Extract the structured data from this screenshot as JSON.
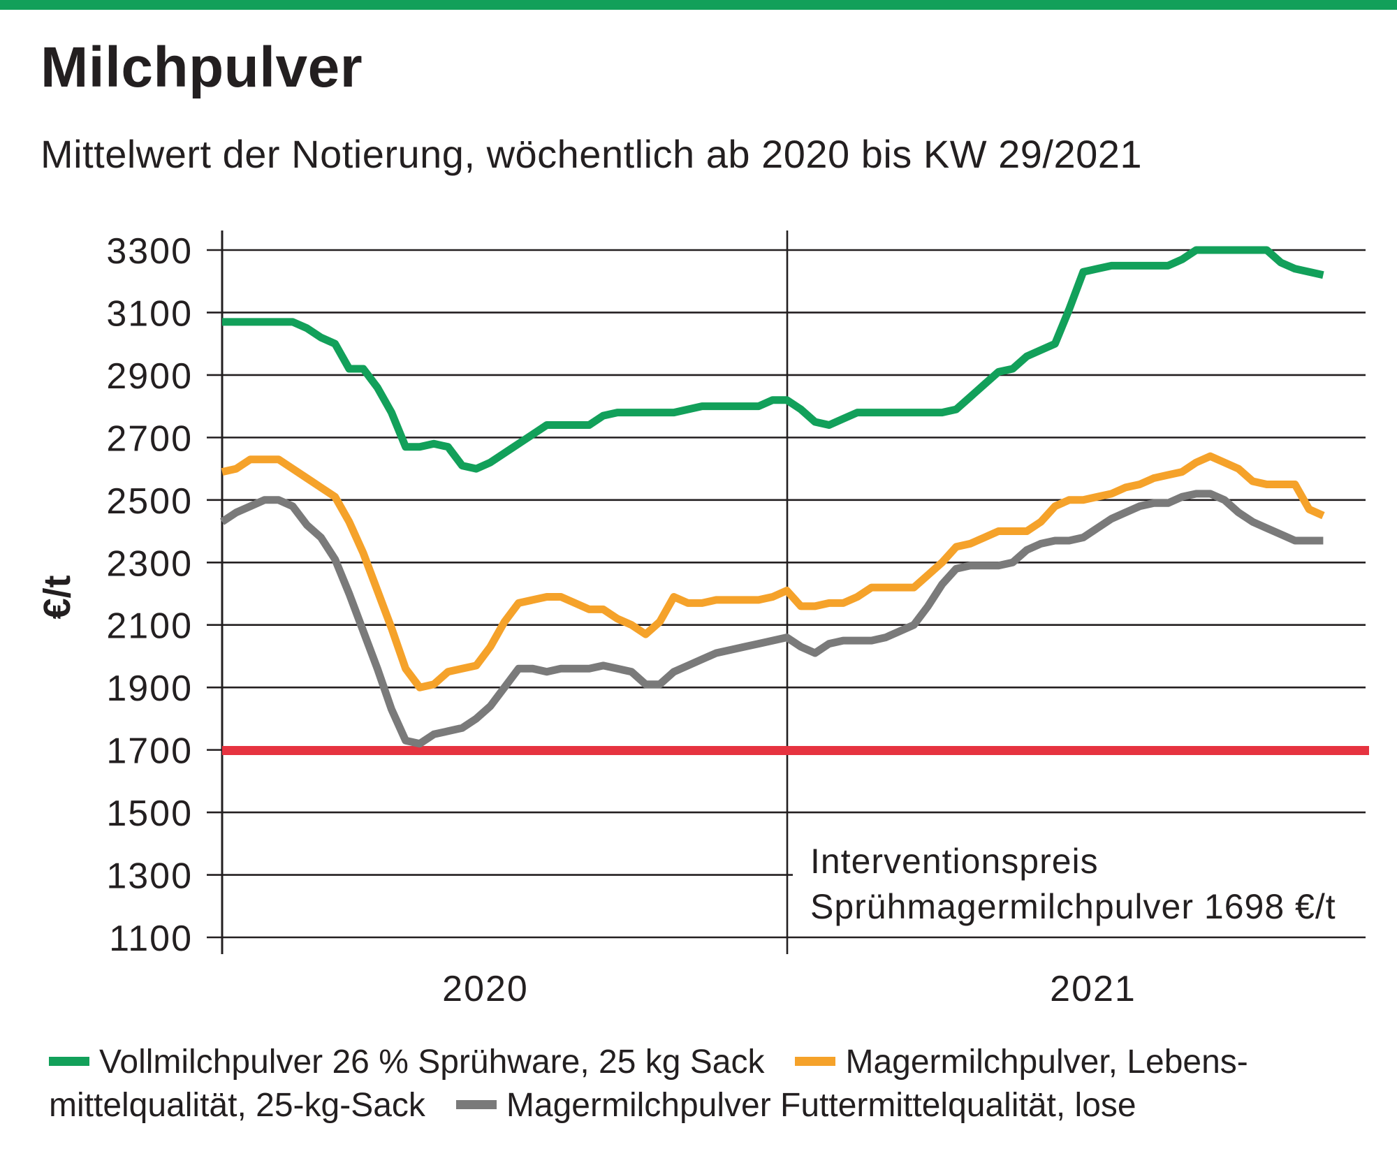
{
  "title": "Milchpulver",
  "subtitle": "Mittelwert der Notierung, wöchentlich ab 2020 bis KW 29/2021",
  "colors": {
    "accent": "#12a05a",
    "green": "#12a05a",
    "orange": "#f5a22a",
    "gray": "#7a7a7a",
    "red": "#e63340"
  },
  "chart_data": {
    "type": "line",
    "ylabel": "€/t",
    "yticks": [
      1100,
      1300,
      1500,
      1700,
      1900,
      2100,
      2300,
      2500,
      2700,
      2900,
      3100,
      3300
    ],
    "ylim": [
      1100,
      3300
    ],
    "xlabels": [
      "2020",
      "2021"
    ],
    "x_unit": "week since start of 2020",
    "xlim": [
      1,
      82
    ],
    "grid": true,
    "reference_line": {
      "value": 1698,
      "label_line1": "Interventionspreis",
      "label_line2": "Sprühmagermilchpulver 1698 €/t"
    },
    "series": [
      {
        "name": "Vollmilchpulver 26 % Sprühware, 25 kg Sack",
        "color": "#12a05a",
        "x": [
          1,
          2,
          3,
          4,
          5,
          6,
          7,
          8,
          9,
          10,
          11,
          12,
          13,
          14,
          15,
          16,
          17,
          18,
          19,
          20,
          21,
          22,
          23,
          24,
          25,
          26,
          27,
          28,
          29,
          30,
          31,
          32,
          33,
          34,
          35,
          36,
          37,
          38,
          39,
          40,
          41,
          42,
          43,
          44,
          45,
          46,
          47,
          48,
          49,
          50,
          51,
          52,
          53,
          54,
          55,
          56,
          57,
          58,
          59,
          60,
          61,
          62,
          63,
          64,
          65,
          66,
          67,
          68,
          69,
          70,
          71,
          72,
          73,
          74,
          75,
          76,
          77,
          78,
          79
        ],
        "values": [
          3070,
          3070,
          3070,
          3070,
          3070,
          3070,
          3050,
          3020,
          3000,
          2920,
          2920,
          2860,
          2780,
          2670,
          2670,
          2680,
          2670,
          2610,
          2600,
          2620,
          2650,
          2680,
          2710,
          2740,
          2740,
          2740,
          2740,
          2770,
          2780,
          2780,
          2780,
          2780,
          2780,
          2790,
          2800,
          2800,
          2800,
          2800,
          2800,
          2820,
          2820,
          2790,
          2750,
          2740,
          2760,
          2780,
          2780,
          2780,
          2780,
          2780,
          2780,
          2780,
          2790,
          2830,
          2870,
          2910,
          2920,
          2960,
          2980,
          3000,
          3110,
          3230,
          3240,
          3250,
          3250,
          3250,
          3250,
          3250,
          3270,
          3300,
          3300,
          3300,
          3300,
          3300,
          3300,
          3260,
          3240,
          3230,
          3220
        ]
      },
      {
        "name": "Magermilchpulver, Lebensmittelqualität, 25-kg-Sack",
        "color": "#f5a22a",
        "x": [
          1,
          2,
          3,
          4,
          5,
          6,
          7,
          8,
          9,
          10,
          11,
          12,
          13,
          14,
          15,
          16,
          17,
          18,
          19,
          20,
          21,
          22,
          23,
          24,
          25,
          26,
          27,
          28,
          29,
          30,
          31,
          32,
          33,
          34,
          35,
          36,
          37,
          38,
          39,
          40,
          41,
          42,
          43,
          44,
          45,
          46,
          47,
          48,
          49,
          50,
          51,
          52,
          53,
          54,
          55,
          56,
          57,
          58,
          59,
          60,
          61,
          62,
          63,
          64,
          65,
          66,
          67,
          68,
          69,
          70,
          71,
          72,
          73,
          74,
          75,
          76,
          77,
          78,
          79
        ],
        "values": [
          2590,
          2600,
          2630,
          2630,
          2630,
          2600,
          2570,
          2540,
          2510,
          2430,
          2330,
          2210,
          2090,
          1960,
          1900,
          1910,
          1950,
          1960,
          1970,
          2030,
          2110,
          2170,
          2180,
          2190,
          2190,
          2170,
          2150,
          2150,
          2120,
          2100,
          2070,
          2110,
          2190,
          2170,
          2170,
          2180,
          2180,
          2180,
          2180,
          2190,
          2210,
          2160,
          2160,
          2170,
          2170,
          2190,
          2220,
          2220,
          2220,
          2220,
          2260,
          2300,
          2350,
          2360,
          2380,
          2400,
          2400,
          2400,
          2430,
          2480,
          2500,
          2500,
          2510,
          2520,
          2540,
          2550,
          2570,
          2580,
          2590,
          2620,
          2640,
          2620,
          2600,
          2560,
          2550,
          2550,
          2550,
          2470,
          2450
        ]
      },
      {
        "name": "Magermilchpulver Futtermittelqualität, lose",
        "color": "#7a7a7a",
        "x": [
          1,
          2,
          3,
          4,
          5,
          6,
          7,
          8,
          9,
          10,
          11,
          12,
          13,
          14,
          15,
          16,
          17,
          18,
          19,
          20,
          21,
          22,
          23,
          24,
          25,
          26,
          27,
          28,
          29,
          30,
          31,
          32,
          33,
          34,
          35,
          36,
          37,
          38,
          39,
          40,
          41,
          42,
          43,
          44,
          45,
          46,
          47,
          48,
          49,
          50,
          51,
          52,
          53,
          54,
          55,
          56,
          57,
          58,
          59,
          60,
          61,
          62,
          63,
          64,
          65,
          66,
          67,
          68,
          69,
          70,
          71,
          72,
          73,
          74,
          75,
          76,
          77,
          78,
          79
        ],
        "values": [
          2430,
          2460,
          2480,
          2500,
          2500,
          2480,
          2420,
          2380,
          2310,
          2200,
          2080,
          1960,
          1830,
          1730,
          1720,
          1750,
          1760,
          1770,
          1800,
          1840,
          1900,
          1960,
          1960,
          1950,
          1960,
          1960,
          1960,
          1970,
          1960,
          1950,
          1910,
          1910,
          1950,
          1970,
          1990,
          2010,
          2020,
          2030,
          2040,
          2050,
          2060,
          2030,
          2010,
          2040,
          2050,
          2050,
          2050,
          2060,
          2080,
          2100,
          2160,
          2230,
          2280,
          2290,
          2290,
          2290,
          2300,
          2340,
          2360,
          2370,
          2370,
          2380,
          2410,
          2440,
          2460,
          2480,
          2490,
          2490,
          2510,
          2520,
          2520,
          2500,
          2460,
          2430,
          2410,
          2390,
          2370,
          2370,
          2370
        ]
      }
    ]
  },
  "legend": {
    "row1_a": "Vollmilchpulver 26 % Sprühware, 25 kg Sack",
    "row1_b": "Magermilchpulver, Lebens-",
    "row2_a": "mittelqualität, 25-kg-Sack",
    "row2_b": "Magermilchpulver Futtermittelqualität, lose"
  }
}
